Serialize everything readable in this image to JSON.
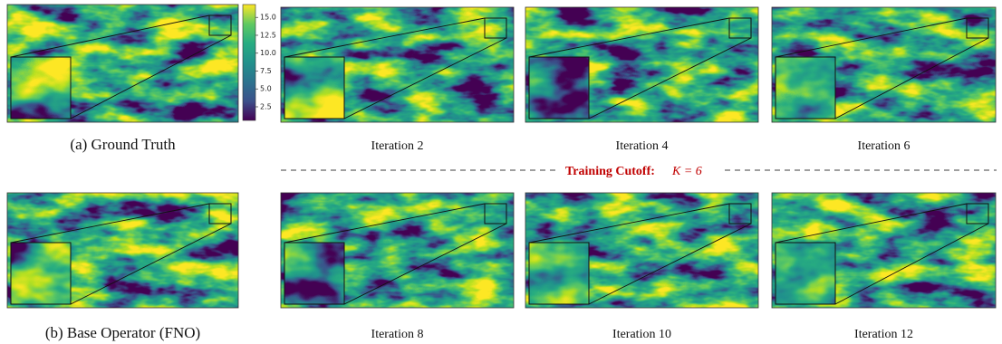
{
  "panels": [
    {
      "caption": "(a) Ground Truth"
    },
    {
      "caption": "Iteration 2"
    },
    {
      "caption": "Iteration 4"
    },
    {
      "caption": "Iteration 6"
    },
    {
      "caption": "(b) Base Operator (FNO)"
    },
    {
      "caption": "Iteration 8"
    },
    {
      "caption": "Iteration 10"
    },
    {
      "caption": "Iteration 12"
    }
  ],
  "colorbar": {
    "lim": [
      0.6,
      16.8
    ],
    "ticks": [
      {
        "value": 2.5,
        "label": "2.5"
      },
      {
        "value": 5,
        "label": "5.0"
      },
      {
        "value": 7.5,
        "label": "7.5"
      },
      {
        "value": 10,
        "label": "10.0"
      },
      {
        "value": 12.5,
        "label": "12.5"
      },
      {
        "value": 15,
        "label": "15.0"
      }
    ]
  },
  "cutoff": {
    "label": "Training Cutoff:",
    "math": "K = 6"
  }
}
